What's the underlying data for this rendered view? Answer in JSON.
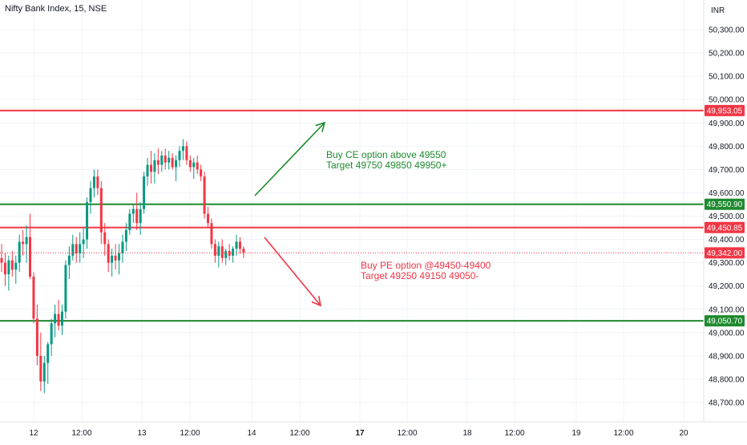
{
  "header": {
    "title": "Nifty Bank Index, 15, NSE",
    "currency": "INR"
  },
  "colors": {
    "up": "#089981",
    "down": "#f23645",
    "resistance": "#f23645",
    "support": "#1e8a2e",
    "axis_text": "#131722",
    "grid": "#f0f3fa"
  },
  "chart_data": {
    "type": "candlestick",
    "title": "Nifty Bank Index, 15, NSE",
    "currency": "INR",
    "ylim": [
      48620,
      50370
    ],
    "ticks": {
      "y": [
        "50,300.00",
        "50,200.00",
        "50,100.00",
        "50,000.00",
        "49,900.00",
        "49,800.00",
        "49,700.00",
        "49,600.00",
        "49,500.00",
        "49,400.00",
        "49,300.00",
        "49,200.00",
        "49,100.00",
        "49,000.00",
        "48,900.00",
        "48,800.00",
        "48,700.00"
      ],
      "x": [
        {
          "label": "12",
          "bold": false
        },
        {
          "label": "12:00",
          "bold": false
        },
        {
          "label": "13",
          "bold": false
        },
        {
          "label": "12:00",
          "bold": false
        },
        {
          "label": "14",
          "bold": false
        },
        {
          "label": "12:00",
          "bold": false
        },
        {
          "label": "17",
          "bold": true
        },
        {
          "label": "12:00",
          "bold": false
        },
        {
          "label": "18",
          "bold": false
        },
        {
          "label": "12:00",
          "bold": false
        },
        {
          "label": "19",
          "bold": false
        },
        {
          "label": "12:00",
          "bold": false
        },
        {
          "label": "20",
          "bold": false
        }
      ]
    },
    "candles": [
      [
        49320,
        49380,
        49260,
        49300
      ],
      [
        49300,
        49340,
        49200,
        49250
      ],
      [
        49250,
        49330,
        49180,
        49310
      ],
      [
        49310,
        49350,
        49240,
        49270
      ],
      [
        49270,
        49330,
        49210,
        49300
      ],
      [
        49300,
        49420,
        49260,
        49390
      ],
      [
        49390,
        49440,
        49330,
        49380
      ],
      [
        49380,
        49460,
        49300,
        49410
      ],
      [
        49410,
        49510,
        49230,
        49240
      ],
      [
        49240,
        49260,
        49040,
        49060
      ],
      [
        49060,
        49120,
        48860,
        48900
      ],
      [
        48900,
        49000,
        48750,
        48790
      ],
      [
        48790,
        48900,
        48740,
        48870
      ],
      [
        48870,
        48960,
        48780,
        48950
      ],
      [
        48950,
        49060,
        48900,
        49040
      ],
      [
        49040,
        49120,
        48980,
        49080
      ],
      [
        49080,
        49140,
        49010,
        49030
      ],
      [
        49030,
        49120,
        48990,
        49090
      ],
      [
        49090,
        49310,
        49060,
        49290
      ],
      [
        49290,
        49370,
        49230,
        49330
      ],
      [
        49330,
        49420,
        49310,
        49380
      ],
      [
        49380,
        49410,
        49300,
        49340
      ],
      [
        49340,
        49430,
        49300,
        49380
      ],
      [
        49380,
        49450,
        49320,
        49400
      ],
      [
        49400,
        49580,
        49360,
        49560
      ],
      [
        49560,
        49650,
        49510,
        49620
      ],
      [
        49620,
        49700,
        49580,
        49670
      ],
      [
        49670,
        49700,
        49590,
        49620
      ],
      [
        49620,
        49650,
        49380,
        49430
      ],
      [
        49430,
        49470,
        49330,
        49380
      ],
      [
        49380,
        49400,
        49260,
        49300
      ],
      [
        49300,
        49360,
        49240,
        49330
      ],
      [
        49330,
        49380,
        49270,
        49310
      ],
      [
        49310,
        49380,
        49250,
        49340
      ],
      [
        49340,
        49420,
        49300,
        49390
      ],
      [
        49390,
        49470,
        49350,
        49440
      ],
      [
        49440,
        49530,
        49420,
        49510
      ],
      [
        49510,
        49550,
        49470,
        49530
      ],
      [
        49530,
        49600,
        49440,
        49470
      ],
      [
        49470,
        49560,
        49420,
        49530
      ],
      [
        49530,
        49690,
        49510,
        49670
      ],
      [
        49670,
        49750,
        49630,
        49720
      ],
      [
        49720,
        49780,
        49640,
        49690
      ],
      [
        49690,
        49770,
        49640,
        49740
      ],
      [
        49740,
        49790,
        49680,
        49720
      ],
      [
        49720,
        49780,
        49690,
        49760
      ],
      [
        49760,
        49790,
        49700,
        49730
      ],
      [
        49730,
        49780,
        49700,
        49750
      ],
      [
        49750,
        49770,
        49700,
        49710
      ],
      [
        49710,
        49760,
        49650,
        49740
      ],
      [
        49740,
        49800,
        49710,
        49780
      ],
      [
        49780,
        49830,
        49740,
        49800
      ],
      [
        49800,
        49820,
        49720,
        49740
      ],
      [
        49740,
        49760,
        49690,
        49710
      ],
      [
        49710,
        49750,
        49660,
        49730
      ],
      [
        49730,
        49760,
        49680,
        49700
      ],
      [
        49700,
        49720,
        49650,
        49670
      ],
      [
        49670,
        49690,
        49490,
        49510
      ],
      [
        49510,
        49540,
        49450,
        49470
      ],
      [
        49470,
        49490,
        49360,
        49380
      ],
      [
        49380,
        49400,
        49300,
        49330
      ],
      [
        49330,
        49390,
        49280,
        49370
      ],
      [
        49370,
        49400,
        49300,
        49320
      ],
      [
        49320,
        49360,
        49290,
        49350
      ],
      [
        49350,
        49380,
        49310,
        49330
      ],
      [
        49330,
        49370,
        49300,
        49360
      ],
      [
        49360,
        49420,
        49330,
        49390
      ],
      [
        49390,
        49410,
        49340,
        49360
      ],
      [
        49360,
        49370,
        49320,
        49342
      ]
    ],
    "levels": [
      {
        "value": 49953.05,
        "label": "49,953.05",
        "kind": "resistance"
      },
      {
        "value": 49550.9,
        "label": "49,550.90",
        "kind": "support"
      },
      {
        "value": 49450.85,
        "label": "49,450.85",
        "kind": "resistance"
      },
      {
        "value": 49050.7,
        "label": "49,050.70",
        "kind": "support"
      }
    ],
    "last_price": {
      "value": 49342.0,
      "label": "49,342.00"
    },
    "annotations": [
      {
        "kind": "support",
        "lines": [
          "Buy CE option above 49550",
          "Target 49750 49850 49950+"
        ]
      },
      {
        "kind": "resistance",
        "lines": [
          "Buy PE option @49450-49400",
          "Target 49250 49150 49050-"
        ]
      }
    ]
  }
}
